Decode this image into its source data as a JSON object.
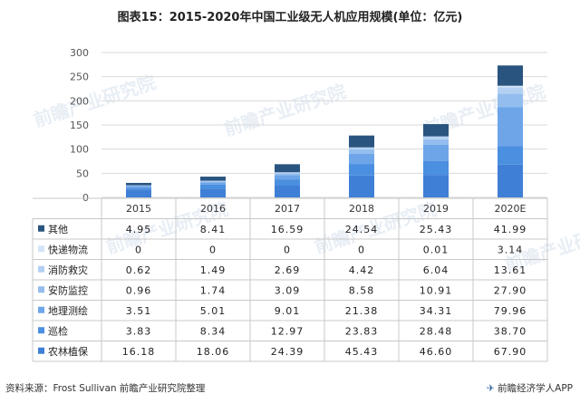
{
  "title": "图表15：2015-2020年中国工业级无人机应用规模(单位：亿元)",
  "footer": {
    "source": "资料来源：Frost Sullivan 前瞻产业研究院整理",
    "brand": "前瞻经济学人APP",
    "brand_icon": "bird-logo-icon"
  },
  "watermark_text": "前瞻产业研究院",
  "chart_data": {
    "type": "bar",
    "stacked": true,
    "categories": [
      "2015",
      "2016",
      "2017",
      "2018",
      "2019",
      "2020E"
    ],
    "ylim": [
      0,
      300
    ],
    "yticks": [
      0,
      50,
      100,
      150,
      200,
      250,
      300
    ],
    "grid": true,
    "legend": "table-rows",
    "series": [
      {
        "name": "农林植保",
        "color": "#3f7fd6",
        "values": [
          "16.18",
          "18.06",
          "24.39",
          "45.43",
          "46.60",
          "67.90"
        ]
      },
      {
        "name": "巡检",
        "color": "#4a8fe0",
        "values": [
          "3.83",
          "8.34",
          "12.97",
          "23.83",
          "28.48",
          "38.70"
        ]
      },
      {
        "name": "地理测绘",
        "color": "#6da5e8",
        "values": [
          "3.51",
          "5.01",
          "9.01",
          "21.38",
          "34.31",
          "79.96"
        ]
      },
      {
        "name": "安防监控",
        "color": "#93bdee",
        "values": [
          "0.96",
          "1.74",
          "3.09",
          "8.58",
          "10.91",
          "27.90"
        ]
      },
      {
        "name": "消防救灾",
        "color": "#b3d0f3",
        "values": [
          "0.62",
          "1.49",
          "2.69",
          "4.42",
          "6.04",
          "13.61"
        ]
      },
      {
        "name": "快递物流",
        "color": "#d3e4f8",
        "values": [
          "0",
          "0",
          "0",
          "0",
          "0.01",
          "3.14"
        ]
      },
      {
        "name": "其他",
        "color": "#2a5480",
        "values": [
          "4.95",
          "8.41",
          "16.59",
          "24.54",
          "25.43",
          "41.99"
        ]
      }
    ],
    "table_row_order": [
      "其他",
      "快递物流",
      "消防救灾",
      "安防监控",
      "地理测绘",
      "巡检",
      "农林植保"
    ]
  }
}
